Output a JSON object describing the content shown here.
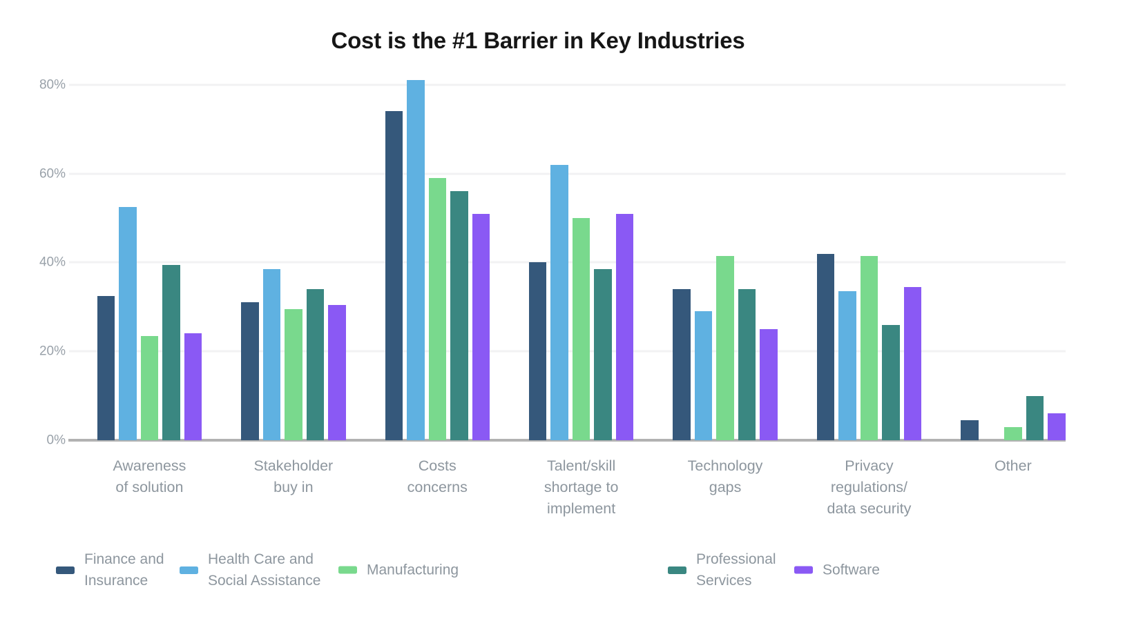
{
  "chart_data": {
    "type": "bar",
    "title": "Cost is the #1 Barrier in Key Industries",
    "xlabel": "",
    "ylabel": "",
    "categories": [
      "Awareness of solution",
      "Stakeholder buy in",
      "Costs concerns",
      "Talent/skill shortage to implement",
      "Technology gaps",
      "Privacy regulations/ data security",
      "Other"
    ],
    "category_labels": [
      "Awareness\nof solution",
      "Stakeholder\nbuy in",
      "Costs\nconcerns",
      "Talent/skill\nshortage to\nimplement",
      "Technology\ngaps",
      "Privacy\nregulations/\ndata security",
      "Other"
    ],
    "series": [
      {
        "name": "Finance and Insurance",
        "legend_label": "Finance and\nInsurance",
        "color": "#35587B",
        "values": [
          32.5,
          31,
          74,
          40,
          34,
          42,
          4.5
        ]
      },
      {
        "name": "Health Care and Social Assistance",
        "legend_label": "Health Care and\nSocial Assistance",
        "color": "#5FB1E1",
        "values": [
          52.5,
          38.5,
          81,
          62,
          29,
          33.5,
          0
        ]
      },
      {
        "name": "Manufacturing",
        "legend_label": "Manufacturing",
        "color": "#79D98D",
        "values": [
          23.5,
          29.5,
          59,
          50,
          41.5,
          41.5,
          3
        ]
      },
      {
        "name": "Professional Services",
        "legend_label": "Professional\nServices",
        "color": "#3A8781",
        "values": [
          39.5,
          34,
          56,
          38.5,
          34,
          26,
          10
        ]
      },
      {
        "name": "Software",
        "legend_label": "Software",
        "color": "#8A59F4",
        "values": [
          24,
          30.5,
          51,
          51,
          25,
          34.5,
          6
        ]
      }
    ],
    "yticks": [
      0,
      20,
      40,
      60,
      80
    ],
    "ytick_labels": [
      "0%",
      "20%",
      "40%",
      "60%",
      "80%"
    ],
    "ylim": [
      0,
      83.5
    ],
    "grid": true,
    "legend_position": "bottom"
  }
}
